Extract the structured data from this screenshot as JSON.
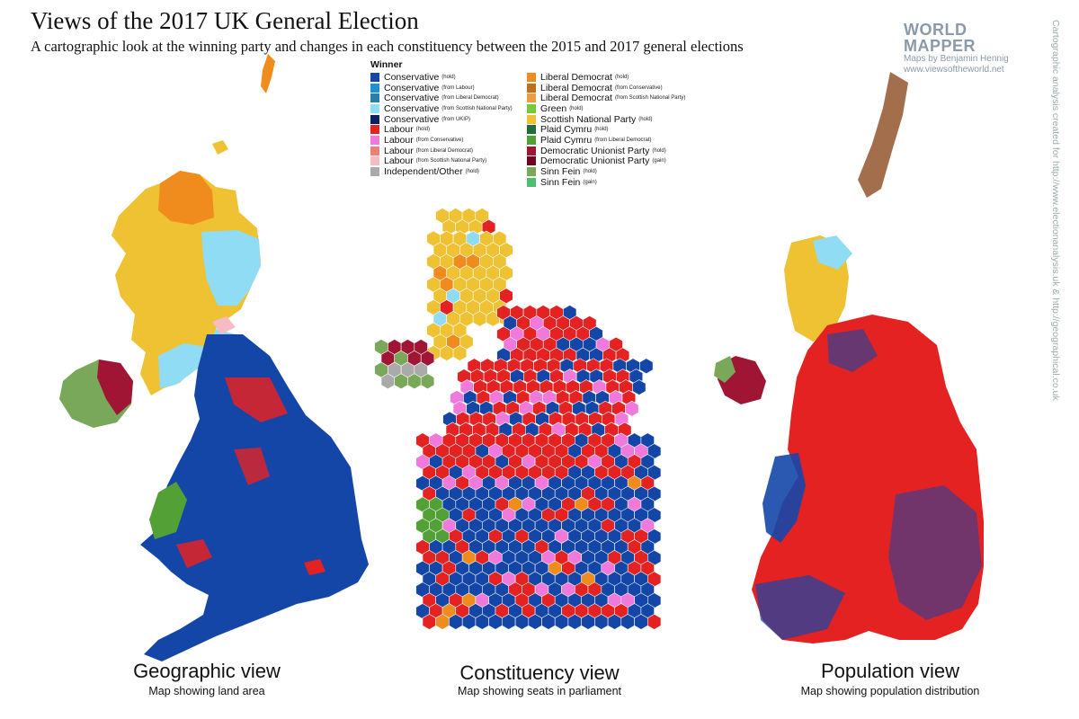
{
  "title": "Views of the 2017 UK General Election",
  "subtitle": "A cartographic look at the winning party and changes in each constituency between the 2015 and 2017 general elections",
  "brand": {
    "line1": "WORLD",
    "line2": "MAPPER",
    "author": "Maps by Benjamin Hennig",
    "url": "www.viewsoftheworld.net"
  },
  "credit": "Cartographic analysis created for http://www.electionanalysis.uk & http://geographical.co.uk",
  "legend": {
    "heading": "Winner",
    "left": [
      {
        "party": "Conservative",
        "qual": "(hold)",
        "color": "#1446a8"
      },
      {
        "party": "Conservative",
        "qual": "(from Labour)",
        "color": "#1e90d4"
      },
      {
        "party": "Conservative",
        "qual": "(from Liberal Democrat)",
        "color": "#2a7fa8"
      },
      {
        "party": "Conservative",
        "qual": "(from Scottish National Party)",
        "color": "#8fdcf4"
      },
      {
        "party": "Conservative",
        "qual": "(from UKIP)",
        "color": "#0d1f5c"
      },
      {
        "party": "Labour",
        "qual": "(hold)",
        "color": "#e42222"
      },
      {
        "party": "Labour",
        "qual": "(from Conservative)",
        "color": "#f07adc"
      },
      {
        "party": "Labour",
        "qual": "(from Liberal Democrat)",
        "color": "#ec8078"
      },
      {
        "party": "Labour",
        "qual": "(from Scottish National Party)",
        "color": "#f6bcc4"
      },
      {
        "party": "Independent/Other",
        "qual": "(hold)",
        "color": "#aaaaaa"
      }
    ],
    "right": [
      {
        "party": "Liberal Democrat",
        "qual": "(hold)",
        "color": "#f08c1e"
      },
      {
        "party": "Liberal Democrat",
        "qual": "(from Conservative)",
        "color": "#c07018"
      },
      {
        "party": "Liberal Democrat",
        "qual": "(from Scottish National Party)",
        "color": "#e8a040"
      },
      {
        "party": "Green",
        "qual": "(hold)",
        "color": "#7ac83c"
      },
      {
        "party": "Scottish National Party",
        "qual": "(hold)",
        "color": "#eec232"
      },
      {
        "party": "Plaid Cymru",
        "qual": "(hold)",
        "color": "#1e6e3c"
      },
      {
        "party": "Plaid Cymru",
        "qual": "(from Liberal Democrat)",
        "color": "#52a036"
      },
      {
        "party": "Democratic Unionist Party",
        "qual": "(hold)",
        "color": "#a01434"
      },
      {
        "party": "Democratic Unionist Party",
        "qual": "(gain)",
        "color": "#6e0820"
      },
      {
        "party": "Sinn Fein",
        "qual": "(hold)",
        "color": "#7aa85a"
      },
      {
        "party": "Sinn Fein",
        "qual": "(gain)",
        "color": "#4cc070"
      }
    ]
  },
  "views": [
    {
      "title": "Geographic view",
      "subtitle": "Map showing land area"
    },
    {
      "title": "Constituency view",
      "subtitle": "Map showing seats in parliament"
    },
    {
      "title": "Population view",
      "subtitle": "Map showing population distribution"
    }
  ]
}
